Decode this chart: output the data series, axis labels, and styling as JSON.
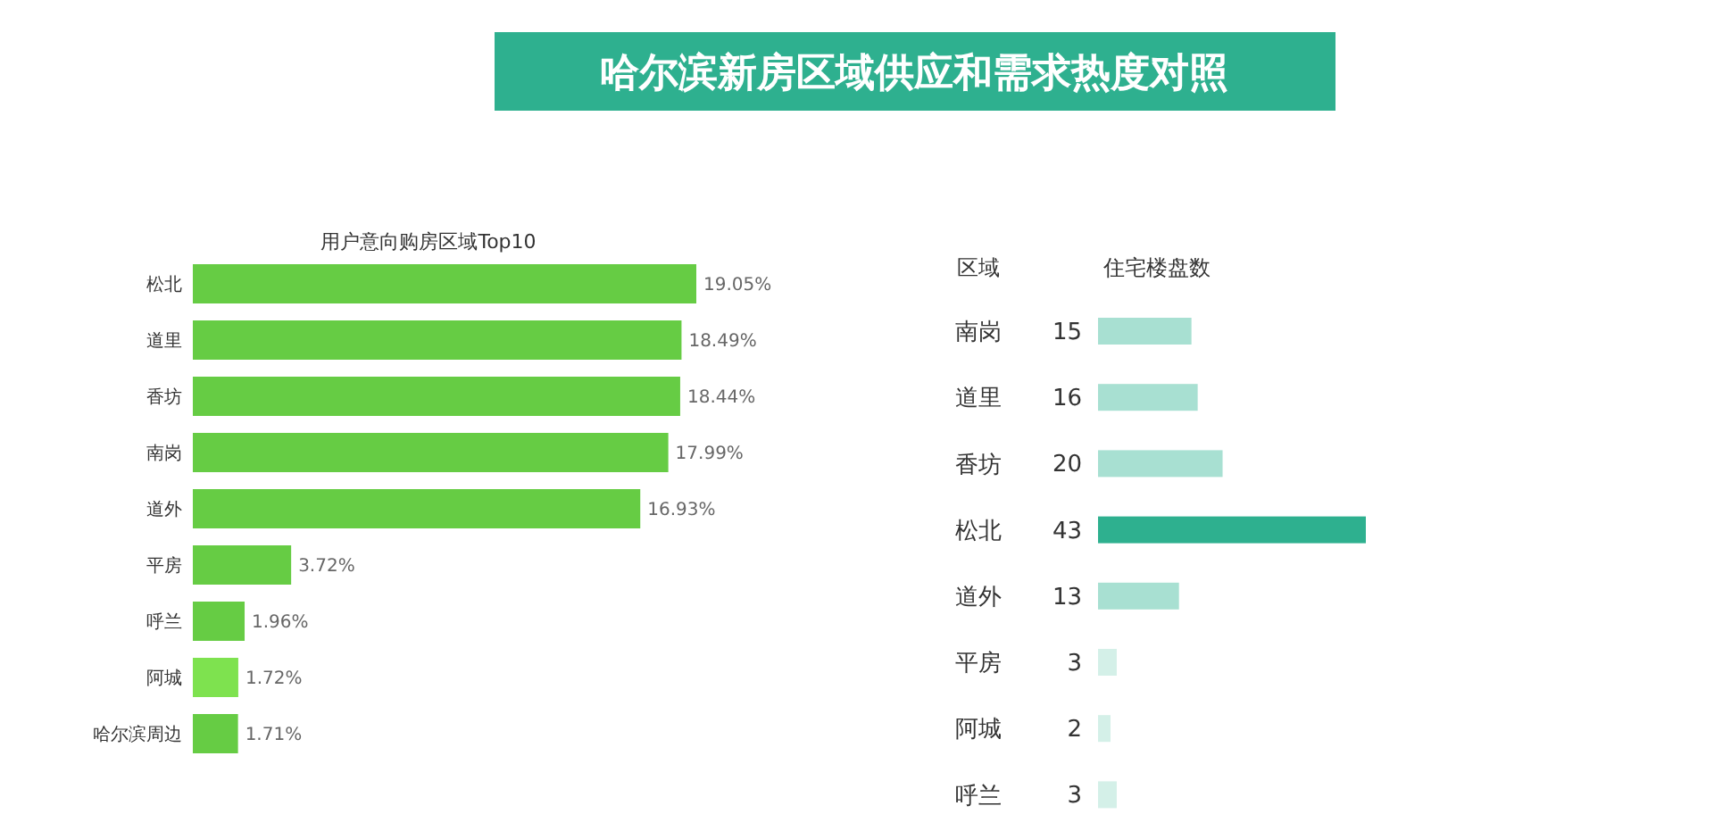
{
  "chart_data": [
    {
      "type": "bar",
      "orientation": "horizontal",
      "title": "哈尔滨新房区域供应和需求热度对照",
      "subtitle": "用户意向购房区域Top10",
      "categories": [
        "松北",
        "道里",
        "香坊",
        "南岗",
        "道外",
        "平房",
        "呼兰",
        "阿城",
        "哈尔滨周边"
      ],
      "values": [
        19.05,
        18.49,
        18.44,
        17.99,
        16.93,
        3.72,
        1.96,
        1.72,
        1.71
      ],
      "colors": [
        "#66cc44",
        "#66cc44",
        "#66cc44",
        "#66cc44",
        "#66cc44",
        "#66cc44",
        "#66cc44",
        "#7ee24f",
        "#66cc44"
      ],
      "value_labels": [
        "19.05%",
        "18.49%",
        "18.44%",
        "17.99%",
        "16.93%",
        "3.72%",
        "1.96%",
        "1.72%",
        "1.71%"
      ]
    },
    {
      "type": "bar",
      "orientation": "horizontal",
      "ylabel": "区域",
      "xlabel": "住宅楼盘数",
      "categories": [
        "南岗",
        "道里",
        "香坊",
        "松北",
        "道外",
        "平房",
        "阿城",
        "呼兰"
      ],
      "values": [
        15,
        16,
        20,
        43,
        13,
        3,
        2,
        3
      ],
      "colors": [
        "#a8e0d2",
        "#a8e0d2",
        "#a8e0d2",
        "#2eb08f",
        "#a8e0d2",
        "#d4f0e8",
        "#d4f0e8",
        "#d4f0e8"
      ],
      "data_labels": true
    }
  ]
}
